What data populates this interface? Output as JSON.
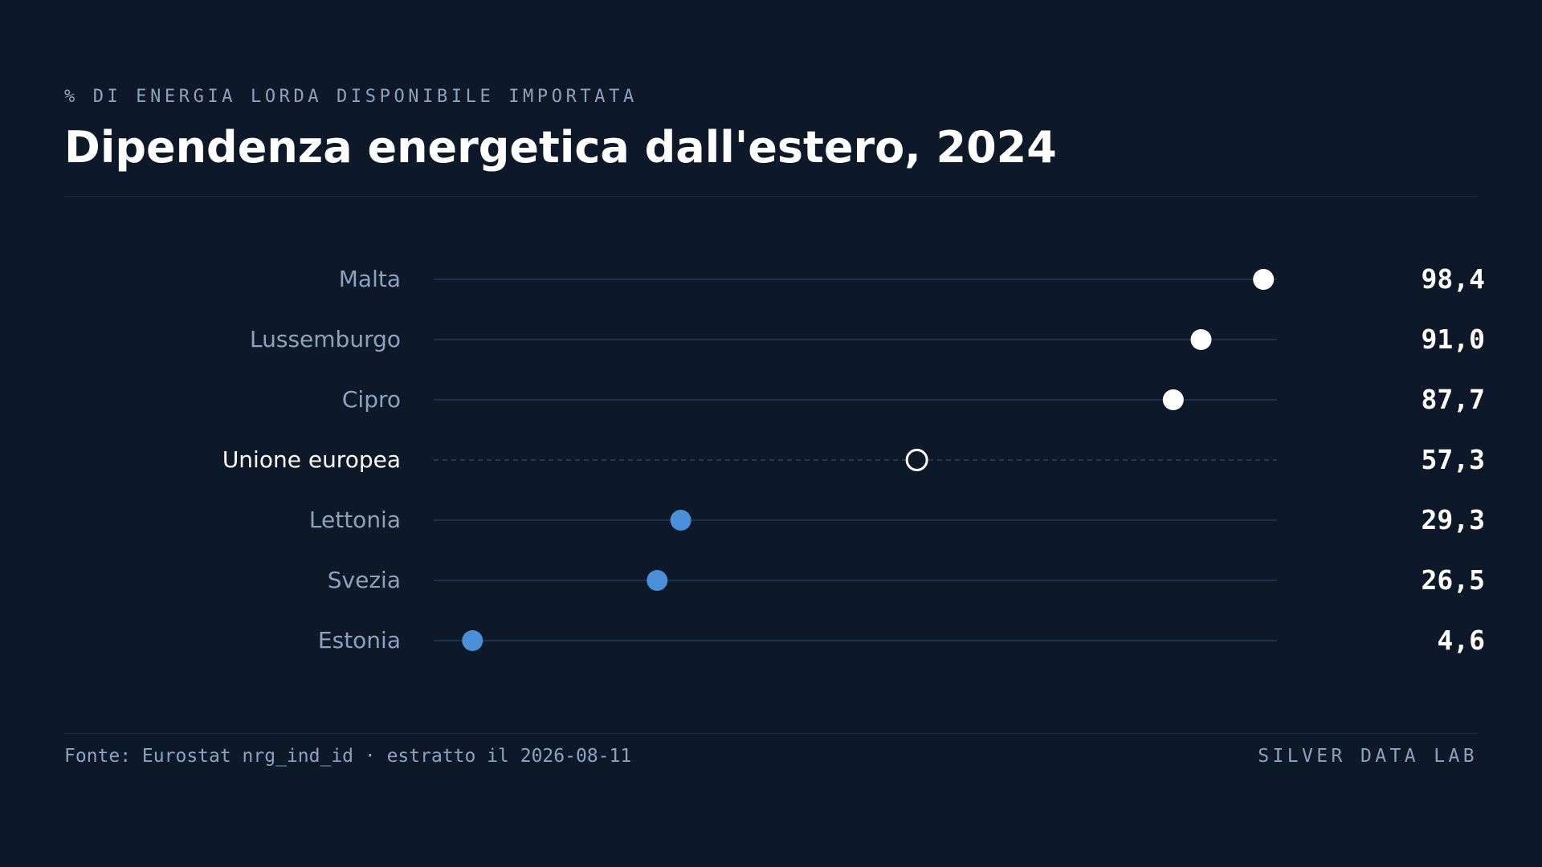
{
  "header": {
    "subtitle": "% DI ENERGIA LORDA DISPONIBILE IMPORTATA",
    "title": "Dipendenza energetica dall'estero, 2024"
  },
  "footer": {
    "source": "Fonte: Eurostat nrg_ind_id · estratto il 2026-08-11",
    "brand": "SILVER DATA LAB"
  },
  "colors": {
    "background": "#0d1929",
    "high": "#ffffff",
    "low": "#4a8fd8",
    "reference": "#ffffff",
    "label": "#8fa1bb",
    "track": "#1e3048"
  },
  "chart_data": {
    "type": "dot",
    "xlim": [
      0,
      100
    ],
    "grid": false,
    "legend": "none",
    "rows": [
      {
        "label": "Malta",
        "value": 98.4,
        "value_label": "98,4",
        "kind": "high"
      },
      {
        "label": "Lussemburgo",
        "value": 91.0,
        "value_label": "91,0",
        "kind": "high"
      },
      {
        "label": "Cipro",
        "value": 87.7,
        "value_label": "87,7",
        "kind": "high"
      },
      {
        "label": "Unione europea",
        "value": 57.3,
        "value_label": "57,3",
        "kind": "reference"
      },
      {
        "label": "Lettonia",
        "value": 29.3,
        "value_label": "29,3",
        "kind": "low"
      },
      {
        "label": "Svezia",
        "value": 26.5,
        "value_label": "26,5",
        "kind": "low"
      },
      {
        "label": "Estonia",
        "value": 4.6,
        "value_label": "4,6",
        "kind": "low"
      }
    ]
  }
}
